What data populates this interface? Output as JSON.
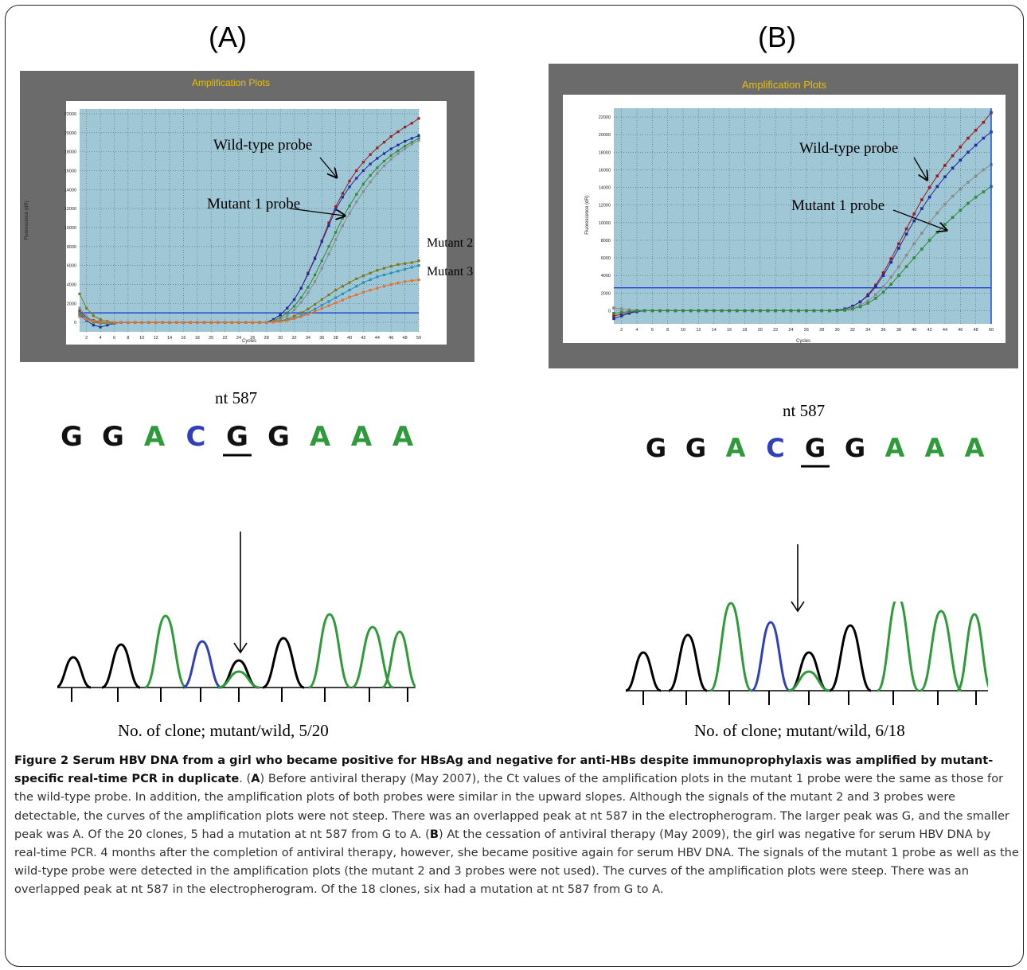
{
  "panels": [
    {
      "label": "(A)",
      "plot": {
        "title": "Amplification Plots",
        "xlabel": "Cycles",
        "ylabel": "Fluorescence (dR)",
        "yticks": [
          "0",
          "2000",
          "4000",
          "6000",
          "8000",
          "10000",
          "12000",
          "14000",
          "16000",
          "18000",
          "20000",
          "22000"
        ],
        "xticks": [
          "2",
          "4",
          "6",
          "8",
          "10",
          "12",
          "14",
          "16",
          "18",
          "20",
          "22",
          "24",
          "26",
          "28",
          "30",
          "32",
          "34",
          "36",
          "38",
          "40",
          "42",
          "44",
          "46",
          "48",
          "50"
        ]
      },
      "annotations": {
        "wild": "Wild-type probe",
        "mutant1": "Mutant 1 probe",
        "mutant2": "Mutant 2",
        "mutant3": "Mutant 3"
      },
      "nt_label": "nt 587",
      "sequence": [
        "G",
        "G",
        "A",
        "C",
        "G",
        "G",
        "A",
        "A",
        "A"
      ],
      "clone_text": "No. of clone; mutant/wild, 5/20"
    },
    {
      "label": "(B)",
      "plot": {
        "title": "Amplification Plots",
        "xlabel": "Cycles",
        "ylabel": "Fluorescence (dR)",
        "yticks": [
          "0",
          "2000",
          "4000",
          "6000",
          "8000",
          "10000",
          "12000",
          "14000",
          "16000",
          "18000",
          "20000",
          "22000"
        ],
        "xticks": [
          "2",
          "4",
          "6",
          "8",
          "10",
          "12",
          "14",
          "16",
          "18",
          "20",
          "22",
          "24",
          "26",
          "28",
          "30",
          "32",
          "34",
          "36",
          "38",
          "40",
          "42",
          "44",
          "46",
          "48",
          "50"
        ]
      },
      "annotations": {
        "wild": "Wild-type probe",
        "mutant1": "Mutant 1 probe"
      },
      "nt_label": "nt 587",
      "sequence": [
        "G",
        "G",
        "A",
        "C",
        "G",
        "G",
        "A",
        "A",
        "A"
      ],
      "clone_text": "No. of clone; mutant/wild, 6/18"
    }
  ],
  "chart_data": [
    {
      "type": "line",
      "title": "Amplification Plots",
      "xlabel": "Cycles",
      "ylabel": "Fluorescence (dR)",
      "xlim": [
        1,
        50
      ],
      "ylim": [
        -1000,
        22500
      ],
      "threshold": 1000,
      "grid": true,
      "x": [
        1,
        2,
        3,
        4,
        5,
        6,
        7,
        8,
        9,
        10,
        11,
        12,
        13,
        14,
        15,
        16,
        17,
        18,
        19,
        20,
        21,
        22,
        23,
        24,
        25,
        26,
        27,
        28,
        29,
        30,
        31,
        32,
        33,
        34,
        35,
        36,
        37,
        38,
        39,
        40,
        41,
        42,
        43,
        44,
        45,
        46,
        47,
        48,
        49,
        50
      ],
      "series": [
        {
          "color": "#9b1b22",
          "values": [
            1200,
            500,
            200,
            50,
            0,
            0,
            0,
            0,
            0,
            0,
            0,
            0,
            0,
            0,
            0,
            0,
            0,
            0,
            0,
            0,
            0,
            0,
            0,
            0,
            0,
            0,
            0,
            0,
            300,
            800,
            1500,
            2400,
            3600,
            5200,
            6800,
            8600,
            10500,
            12200,
            13600,
            14900,
            16000,
            16900,
            17700,
            18400,
            19000,
            19600,
            20100,
            20600,
            21000,
            21500
          ]
        },
        {
          "color": "#1f2d9e",
          "values": [
            800,
            200,
            -300,
            -500,
            -300,
            -100,
            0,
            0,
            0,
            0,
            0,
            0,
            0,
            0,
            0,
            0,
            0,
            0,
            0,
            0,
            0,
            0,
            0,
            0,
            0,
            0,
            0,
            0,
            300,
            800,
            1500,
            2400,
            3600,
            5100,
            6700,
            8500,
            10200,
            11900,
            13200,
            14300,
            15200,
            16000,
            16700,
            17300,
            17800,
            18300,
            18700,
            19100,
            19400,
            19700
          ]
        },
        {
          "color": "#2f8a3c",
          "values": [
            1000,
            400,
            0,
            -100,
            -100,
            -50,
            0,
            0,
            0,
            0,
            0,
            0,
            0,
            0,
            0,
            0,
            0,
            0,
            0,
            0,
            0,
            0,
            0,
            0,
            0,
            0,
            0,
            0,
            150,
            500,
            1000,
            1700,
            2600,
            3700,
            5000,
            6500,
            8000,
            9500,
            11000,
            12300,
            13500,
            14600,
            15500,
            16300,
            17000,
            17600,
            18100,
            18600,
            19000,
            19400
          ]
        },
        {
          "color": "#8a8a8a",
          "values": [
            1500,
            600,
            150,
            0,
            0,
            0,
            0,
            0,
            0,
            0,
            0,
            0,
            0,
            0,
            0,
            0,
            0,
            0,
            0,
            0,
            0,
            0,
            0,
            0,
            0,
            0,
            0,
            0,
            100,
            300,
            700,
            1300,
            2100,
            3100,
            4300,
            5700,
            7200,
            8700,
            10200,
            11500,
            12700,
            13800,
            14800,
            15700,
            16500,
            17200,
            17800,
            18300,
            18800,
            19200
          ]
        },
        {
          "color": "#7a7a1a",
          "values": [
            3000,
            1500,
            700,
            300,
            100,
            0,
            0,
            0,
            0,
            0,
            0,
            0,
            0,
            0,
            0,
            0,
            0,
            0,
            0,
            0,
            0,
            0,
            0,
            0,
            0,
            0,
            0,
            0,
            50,
            150,
            350,
            650,
            1000,
            1400,
            1900,
            2400,
            2900,
            3400,
            3800,
            4200,
            4600,
            4900,
            5200,
            5500,
            5700,
            5900,
            6100,
            6200,
            6300,
            6500
          ]
        },
        {
          "color": "#2c8fb8",
          "values": [
            900,
            400,
            100,
            0,
            0,
            0,
            0,
            0,
            0,
            0,
            0,
            0,
            0,
            0,
            0,
            0,
            0,
            0,
            0,
            0,
            0,
            0,
            0,
            0,
            0,
            0,
            0,
            0,
            30,
            100,
            250,
            450,
            700,
            1000,
            1400,
            1800,
            2200,
            2600,
            3000,
            3400,
            3800,
            4200,
            4500,
            4800,
            5000,
            5200,
            5400,
            5600,
            5800,
            6000
          ]
        },
        {
          "color": "#e8702a",
          "values": [
            600,
            300,
            100,
            0,
            0,
            0,
            0,
            0,
            0,
            0,
            0,
            0,
            0,
            0,
            0,
            0,
            0,
            0,
            0,
            0,
            0,
            0,
            0,
            0,
            0,
            0,
            0,
            0,
            20,
            80,
            200,
            380,
            600,
            850,
            1150,
            1450,
            1750,
            2050,
            2350,
            2650,
            2900,
            3150,
            3400,
            3600,
            3800,
            4000,
            4150,
            4300,
            4400,
            4500
          ]
        }
      ]
    },
    {
      "type": "line",
      "title": "Amplification Plots",
      "xlabel": "Cycles",
      "ylabel": "Fluorescence (dR)",
      "xlim": [
        1,
        50
      ],
      "ylim": [
        -1500,
        23000
      ],
      "threshold": 2600,
      "grid": true,
      "x": [
        1,
        2,
        3,
        4,
        5,
        6,
        7,
        8,
        9,
        10,
        11,
        12,
        13,
        14,
        15,
        16,
        17,
        18,
        19,
        20,
        21,
        22,
        23,
        24,
        25,
        26,
        27,
        28,
        29,
        30,
        31,
        32,
        33,
        34,
        35,
        36,
        37,
        38,
        39,
        40,
        41,
        42,
        43,
        44,
        45,
        46,
        47,
        48,
        49,
        50
      ],
      "series": [
        {
          "color": "#9b1b22",
          "values": [
            -600,
            -400,
            -200,
            -100,
            0,
            0,
            0,
            0,
            0,
            0,
            0,
            0,
            0,
            0,
            0,
            0,
            0,
            0,
            0,
            0,
            0,
            0,
            0,
            0,
            0,
            0,
            0,
            0,
            0,
            50,
            200,
            500,
            1000,
            1800,
            2900,
            4300,
            5900,
            7600,
            9300,
            11000,
            12600,
            14000,
            15300,
            16500,
            17600,
            18600,
            19600,
            20500,
            21400,
            22500
          ]
        },
        {
          "color": "#1f2d9e",
          "values": [
            -900,
            -600,
            -300,
            -100,
            0,
            0,
            0,
            0,
            0,
            0,
            0,
            0,
            0,
            0,
            0,
            0,
            0,
            0,
            0,
            0,
            0,
            0,
            0,
            0,
            0,
            0,
            0,
            0,
            0,
            50,
            200,
            500,
            1000,
            1700,
            2700,
            4000,
            5500,
            7100,
            8700,
            10200,
            11600,
            12900,
            14100,
            15200,
            16200,
            17100,
            18000,
            18800,
            19600,
            20300
          ]
        },
        {
          "color": "#8a8a8a",
          "values": [
            300,
            200,
            100,
            50,
            0,
            0,
            0,
            0,
            0,
            0,
            0,
            0,
            0,
            0,
            0,
            0,
            0,
            0,
            0,
            0,
            0,
            0,
            0,
            0,
            0,
            0,
            0,
            0,
            0,
            0,
            100,
            300,
            600,
            1100,
            1800,
            2700,
            3800,
            5000,
            6300,
            7600,
            8800,
            10000,
            11100,
            12100,
            13000,
            13800,
            14600,
            15300,
            16000,
            16600
          ]
        },
        {
          "color": "#2f8a3c",
          "values": [
            -300,
            -200,
            -100,
            0,
            0,
            0,
            0,
            0,
            0,
            0,
            0,
            0,
            0,
            0,
            0,
            0,
            0,
            0,
            0,
            0,
            0,
            0,
            0,
            0,
            0,
            0,
            0,
            0,
            0,
            0,
            50,
            200,
            450,
            850,
            1400,
            2100,
            3000,
            4000,
            5000,
            6000,
            7000,
            8000,
            8900,
            9800,
            10600,
            11400,
            12200,
            12900,
            13500,
            14100
          ]
        }
      ]
    }
  ],
  "caption": {
    "figure_label": "Figure 2",
    "bold_text": "Serum HBV DNA from a girl who became positive for HBsAg and negative for anti-HBs despite immunoprophylaxis was amplified by mutant-specific real-time PCR in duplicate",
    "a_label": "A",
    "a_text": "Before antiviral therapy (May 2007), the Ct values of the amplification plots in the mutant 1 probe were the same as those for the wild-type probe. In addition, the amplification plots of both probes were similar in the upward slopes. Although the signals of the mutant 2 and 3 probes were detectable, the curves of the amplification plots were not steep. There was an overlapped peak at nt 587 in the electropherogram. The larger peak was G, and the smaller peak was A. Of the 20 clones, 5 had a mutation at nt 587 from G to A.",
    "b_label": "B",
    "b_text": "At the cessation of antiviral therapy (May 2009), the girl was negative for serum HBV DNA by real-time PCR. 4 months after the completion of antiviral therapy, however, she became positive again for serum HBV DNA. The signals of the mutant 1 probe as well as the wild-type probe were detected in the amplification plots (the mutant 2 and 3 probes were not used). The curves of the amplification plots were steep. There was an overlapped peak at nt 587 in the electropherogram. Of the 18 clones, six had a mutation at nt 587 from G to A."
  }
}
